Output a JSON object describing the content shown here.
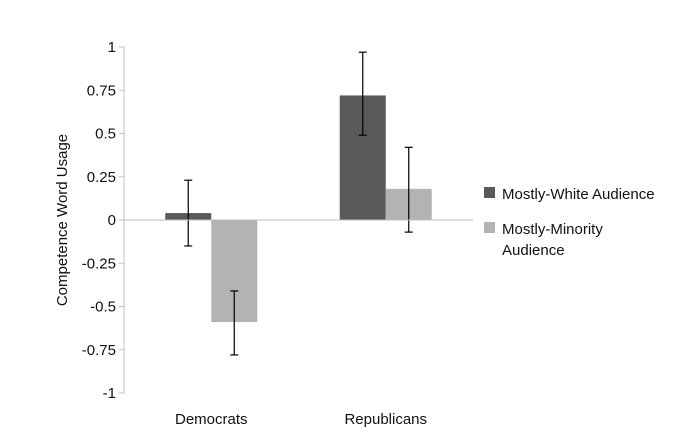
{
  "chart_data": {
    "type": "bar",
    "title": "",
    "xlabel": "",
    "ylabel": "Competence Word Usage",
    "ylim": [
      -1,
      1
    ],
    "yticks": [
      1,
      0.75,
      0.5,
      0.25,
      0,
      -0.25,
      -0.5,
      -0.75,
      -1
    ],
    "ytick_labels": [
      "1",
      "0.75",
      "0.5",
      "0.25",
      "0",
      "-0.25",
      "-0.5",
      "-0.75",
      "-1"
    ],
    "categories": [
      "Democrats",
      "Republicans"
    ],
    "series": [
      {
        "name": "Mostly-White Audience",
        "color": "#595959",
        "values": [
          0.04,
          0.72
        ],
        "error_low": [
          -0.15,
          0.49
        ],
        "error_high": [
          0.23,
          0.97
        ]
      },
      {
        "name": "Mostly-Minority Audience",
        "color": "#b3b3b3",
        "values": [
          -0.59,
          0.18
        ],
        "error_low": [
          -0.78,
          -0.07
        ],
        "error_high": [
          -0.41,
          0.42
        ]
      }
    ],
    "legend_position": "right",
    "grid": false
  }
}
